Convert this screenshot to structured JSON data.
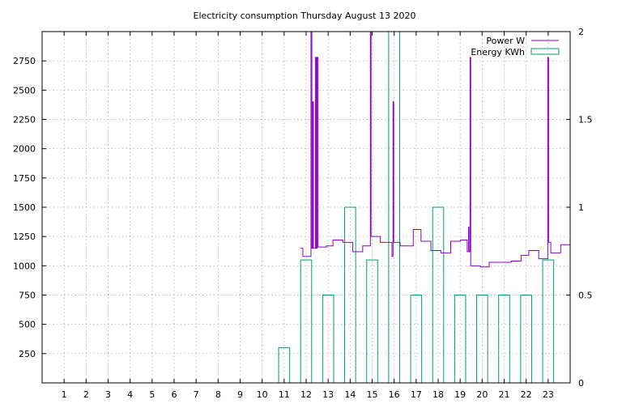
{
  "chart_data": {
    "type": "line",
    "title": "Electricity consumption Thursday August 13 2020",
    "x_ticks": [
      "1",
      "2",
      "3",
      "4",
      "5",
      "6",
      "7",
      "8",
      "9",
      "10",
      "11",
      "12",
      "13",
      "14",
      "15",
      "16",
      "17",
      "18",
      "19",
      "20",
      "21",
      "22",
      "23"
    ],
    "x_range": [
      0,
      24
    ],
    "y_left": {
      "range": [
        0,
        3000
      ],
      "ticks": [
        "250",
        "500",
        "750",
        "1000",
        "1250",
        "1500",
        "1750",
        "2000",
        "2250",
        "2500",
        "2750"
      ]
    },
    "y_right": {
      "range": [
        0,
        2
      ],
      "ticks": [
        "0",
        "0.5",
        "1",
        "1.5",
        "2"
      ]
    },
    "grid": true,
    "legend_position": "top-right",
    "series": [
      {
        "name": "Power W",
        "type": "step-line",
        "axis": "left",
        "color": "#8b00c8",
        "points": [
          [
            11.75,
            1150
          ],
          [
            11.85,
            1080
          ],
          [
            12.2,
            1080
          ],
          [
            12.22,
            3000
          ],
          [
            12.26,
            1150
          ],
          [
            12.3,
            2400
          ],
          [
            12.33,
            1150
          ],
          [
            12.42,
            2780
          ],
          [
            12.46,
            1150
          ],
          [
            12.5,
            2780
          ],
          [
            12.54,
            1160
          ],
          [
            12.9,
            1160
          ],
          [
            12.92,
            1170
          ],
          [
            13.2,
            1170
          ],
          [
            13.22,
            1220
          ],
          [
            13.65,
            1220
          ],
          [
            13.67,
            1200
          ],
          [
            14.1,
            1200
          ],
          [
            14.12,
            1120
          ],
          [
            14.55,
            1120
          ],
          [
            14.57,
            1170
          ],
          [
            14.9,
            1170
          ],
          [
            14.92,
            3000
          ],
          [
            14.95,
            1250
          ],
          [
            15.35,
            1250
          ],
          [
            15.37,
            1200
          ],
          [
            15.85,
            1200
          ],
          [
            15.9,
            1080
          ],
          [
            15.95,
            2400
          ],
          [
            15.98,
            1200
          ],
          [
            16.25,
            1200
          ],
          [
            16.27,
            1170
          ],
          [
            16.85,
            1170
          ],
          [
            16.87,
            1310
          ],
          [
            17.2,
            1310
          ],
          [
            17.22,
            1210
          ],
          [
            17.65,
            1210
          ],
          [
            17.67,
            1130
          ],
          [
            18.1,
            1130
          ],
          [
            18.12,
            1110
          ],
          [
            18.55,
            1110
          ],
          [
            18.57,
            1210
          ],
          [
            19.0,
            1210
          ],
          [
            19.02,
            1220
          ],
          [
            19.3,
            1220
          ],
          [
            19.32,
            1120
          ],
          [
            19.38,
            1330
          ],
          [
            19.4,
            1120
          ],
          [
            19.45,
            2780
          ],
          [
            19.48,
            1000
          ],
          [
            19.9,
            1000
          ],
          [
            19.92,
            990
          ],
          [
            20.3,
            990
          ],
          [
            20.32,
            1030
          ],
          [
            21.3,
            1030
          ],
          [
            21.32,
            1040
          ],
          [
            21.75,
            1040
          ],
          [
            21.77,
            1090
          ],
          [
            22.1,
            1090
          ],
          [
            22.12,
            1130
          ],
          [
            22.55,
            1130
          ],
          [
            22.57,
            1060
          ],
          [
            22.95,
            1060
          ],
          [
            22.98,
            2780
          ],
          [
            23.02,
            1200
          ],
          [
            23.1,
            1200
          ],
          [
            23.12,
            1110
          ],
          [
            23.55,
            1110
          ],
          [
            23.57,
            1180
          ],
          [
            24.0,
            1180
          ]
        ]
      },
      {
        "name": "Energy KWh",
        "type": "box",
        "axis": "right",
        "color": "#009e73",
        "bars": [
          [
            11,
            0.2
          ],
          [
            12,
            0.7
          ],
          [
            13,
            0.5
          ],
          [
            14,
            1.0
          ],
          [
            15,
            0.7
          ],
          [
            16,
            2.0
          ],
          [
            17,
            0.5
          ],
          [
            18,
            1.0
          ],
          [
            19,
            0.5
          ],
          [
            20,
            0.5
          ],
          [
            21,
            0.5
          ],
          [
            22,
            0.5
          ],
          [
            23,
            0.7
          ]
        ]
      }
    ]
  }
}
